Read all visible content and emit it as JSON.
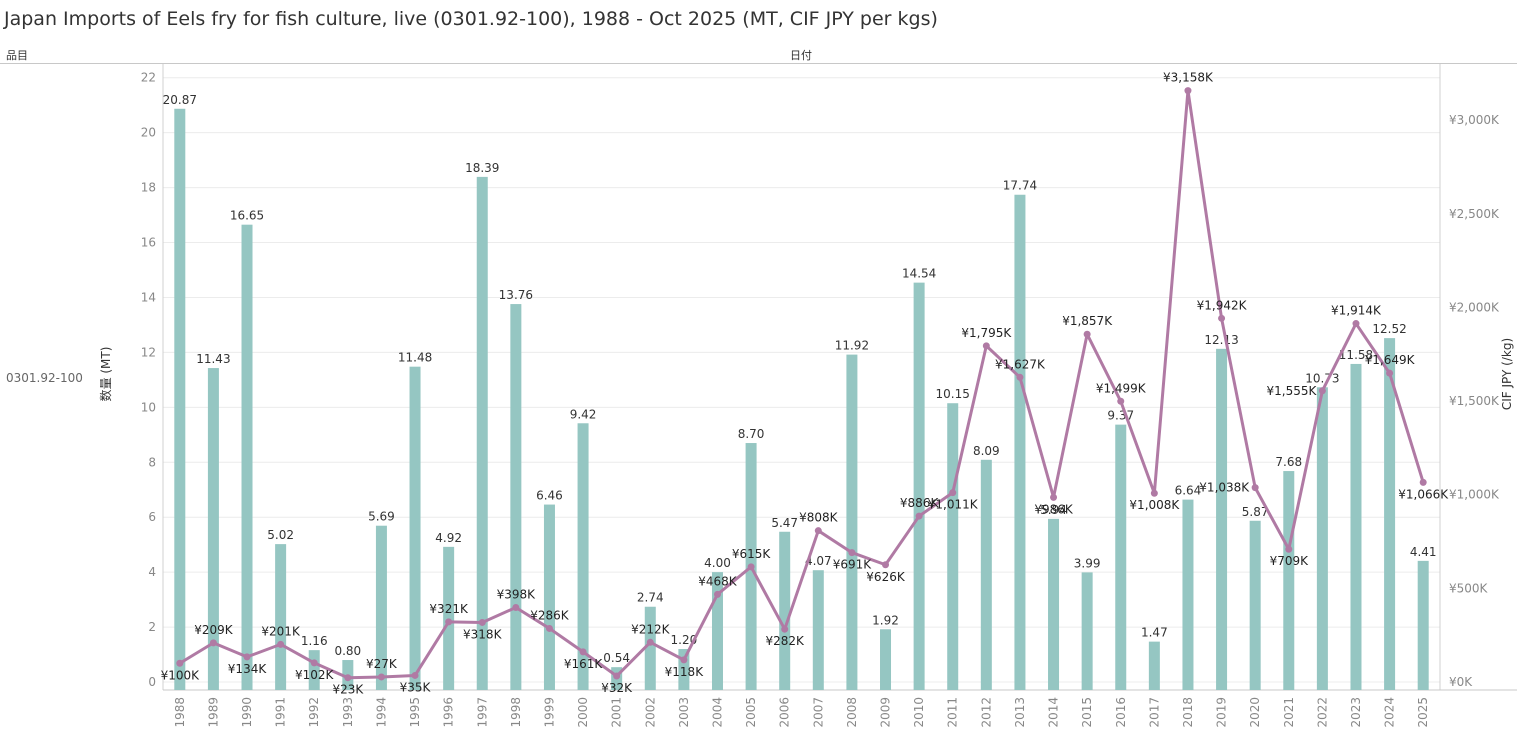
{
  "header": {
    "title": "Japan Imports of Eels fry for fish culture, live (0301.92-100), 1988 - Oct 2025 (MT, CIF JPY per kgs)",
    "row_header": "品目",
    "column_header": "日付",
    "row_value": "0301.92-100"
  },
  "colors": {
    "bar": "#95c6c2",
    "line": "#b07aa4",
    "grid": "#ececec"
  },
  "chart_data": {
    "type": "bar",
    "title": "Japan Imports of Eels fry for fish culture, live (0301.92-100), 1988 - Oct 2025 (MT, CIF JPY per kgs)",
    "categories": [
      "1988",
      "1989",
      "1990",
      "1991",
      "1992",
      "1993",
      "1994",
      "1995",
      "1996",
      "1997",
      "1998",
      "1999",
      "2000",
      "2001",
      "2002",
      "2003",
      "2004",
      "2005",
      "2006",
      "2007",
      "2008",
      "2009",
      "2010",
      "2011",
      "2012",
      "2013",
      "2014",
      "2015",
      "2016",
      "2017",
      "2018",
      "2019",
      "2020",
      "2021",
      "2022",
      "2023",
      "2024",
      "2025"
    ],
    "xlabel": "",
    "ylabel": "数量 (MT)",
    "y2label": "CIF JPY (/kg)",
    "ylim": [
      0,
      22.5
    ],
    "y2lim": [
      0,
      3300
    ],
    "yticks": [
      "0",
      "2",
      "4",
      "6",
      "8",
      "10",
      "12",
      "14",
      "16",
      "18",
      "20",
      "22"
    ],
    "y2ticks": [
      "¥0K",
      "¥500K",
      "¥1,000K",
      "¥1,500K",
      "¥2,000K",
      "¥2,500K",
      "¥3,000K"
    ],
    "series": [
      {
        "name": "数量 (MT)",
        "type": "bar",
        "values": [
          20.87,
          11.43,
          16.65,
          5.02,
          1.16,
          0.8,
          5.69,
          11.48,
          4.92,
          18.39,
          13.76,
          6.46,
          9.42,
          0.54,
          2.74,
          1.2,
          4.0,
          8.7,
          5.47,
          4.07,
          11.92,
          1.92,
          14.54,
          10.15,
          8.09,
          17.74,
          5.94,
          3.99,
          9.37,
          1.47,
          6.64,
          12.13,
          5.87,
          7.68,
          10.73,
          11.58,
          12.52,
          4.41
        ],
        "labels": [
          "20.87",
          "11.43",
          "16.65",
          "5.02",
          "1.16",
          "0.80",
          "5.69",
          "11.48",
          "4.92",
          "18.39",
          "13.76",
          "6.46",
          "9.42",
          "0.54",
          "2.74",
          "1.20",
          "4.00",
          "8.70",
          "5.47",
          "4.07",
          "11.92",
          "1.92",
          "14.54",
          "10.15",
          "8.09",
          "17.74",
          "5.94",
          "3.99",
          "9.37",
          "1.47",
          "6.64",
          "12.13",
          "5.87",
          "7.68",
          "10.73",
          "11.58",
          "12.52",
          "4.41"
        ]
      },
      {
        "name": "CIF JPY (/kg)",
        "type": "line",
        "axis": "right",
        "values": [
          100,
          209,
          134,
          201,
          102,
          23,
          27,
          35,
          321,
          318,
          398,
          286,
          161,
          32,
          212,
          118,
          468,
          615,
          282,
          808,
          691,
          626,
          886,
          1011,
          1795,
          1627,
          986,
          1857,
          1499,
          1008,
          3158,
          1942,
          1038,
          709,
          1555,
          1914,
          1649,
          1066
        ],
        "labels": [
          "¥100K",
          "¥209K",
          "¥134K",
          "¥201K",
          "¥102K",
          "¥23K",
          "¥27K",
          "¥35K",
          "¥321K",
          "¥318K",
          "¥398K",
          "¥286K",
          "¥161K",
          "¥32K",
          "¥212K",
          "¥118K",
          "¥468K",
          "¥615K",
          "¥282K",
          "¥808K",
          "¥691K",
          "¥626K",
          "¥886K",
          "¥1,011K",
          "¥1,795K",
          "¥1,627K",
          "¥986K",
          "¥1,857K",
          "¥1,499K",
          "¥1,008K",
          "¥3,158K",
          "¥1,942K",
          "¥1,038K",
          "¥709K",
          "¥1,555K",
          "¥1,914K",
          "¥1,649K",
          "¥1,066K"
        ],
        "label_positions": [
          "below",
          "above",
          "below",
          "above",
          "below",
          "below",
          "above",
          "below",
          "above",
          "below",
          "above",
          "above",
          "below",
          "below",
          "above",
          "below",
          "above",
          "above",
          "below",
          "above",
          "below",
          "below",
          "above",
          "below",
          "above",
          "above",
          "below",
          "above",
          "above",
          "below",
          "above",
          "above",
          "left",
          "below",
          "left",
          "above",
          "above",
          "below"
        ]
      }
    ]
  }
}
